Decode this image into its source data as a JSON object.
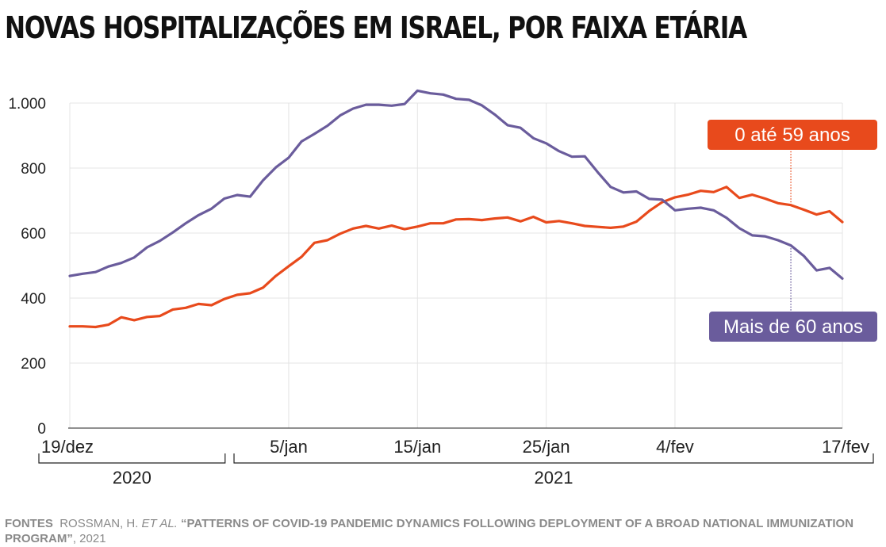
{
  "title": "NOVAS HOSPITALIZAÇÕES EM ISRAEL, POR FAIXA ETÁRIA",
  "source": {
    "label": "FONTES",
    "authors": "ROSSMAN, H.",
    "et_al": "ET AL.",
    "work": "“PATTERNS OF COVID-19 PANDEMIC DYNAMICS FOLLOWING DEPLOYMENT OF A BROAD NATIONAL IMMUNIZATION PROGRAM”",
    "year": ", 2021"
  },
  "chart_data": {
    "type": "line",
    "title": "NOVAS HOSPITALIZAÇÕES EM ISRAEL, POR FAIXA ETÁRIA",
    "xlabel": "",
    "ylabel": "",
    "ylim": [
      0,
      1000
    ],
    "yticks": [
      0,
      200,
      400,
      600,
      800,
      1000
    ],
    "ytick_labels": [
      "0",
      "200",
      "400",
      "600",
      "800",
      "1.000"
    ],
    "xlim": [
      "2020-12-19",
      "2021-02-17"
    ],
    "xticks": [
      {
        "date": "2020-12-19",
        "label": "19/dez"
      },
      {
        "date": "2021-01-05",
        "label": "5/jan"
      },
      {
        "date": "2021-01-15",
        "label": "15/jan"
      },
      {
        "date": "2021-01-25",
        "label": "25/jan"
      },
      {
        "date": "2021-02-04",
        "label": "4/fev"
      },
      {
        "date": "2021-02-17",
        "label": "17/fev"
      }
    ],
    "year_groups": [
      {
        "label": "2020",
        "from": "2020-12-19",
        "to": "2020-12-31"
      },
      {
        "label": "2021",
        "from": "2021-01-01",
        "to": "2021-02-17"
      }
    ],
    "grid": true,
    "x": [
      "2020-12-19",
      "2020-12-20",
      "2020-12-21",
      "2020-12-22",
      "2020-12-23",
      "2020-12-24",
      "2020-12-25",
      "2020-12-26",
      "2020-12-27",
      "2020-12-28",
      "2020-12-29",
      "2020-12-30",
      "2020-12-31",
      "2021-01-01",
      "2021-01-02",
      "2021-01-03",
      "2021-01-04",
      "2021-01-05",
      "2021-01-06",
      "2021-01-07",
      "2021-01-08",
      "2021-01-09",
      "2021-01-10",
      "2021-01-11",
      "2021-01-12",
      "2021-01-13",
      "2021-01-14",
      "2021-01-15",
      "2021-01-16",
      "2021-01-17",
      "2021-01-18",
      "2021-01-19",
      "2021-01-20",
      "2021-01-21",
      "2021-01-22",
      "2021-01-23",
      "2021-01-24",
      "2021-01-25",
      "2021-01-26",
      "2021-01-27",
      "2021-01-28",
      "2021-01-29",
      "2021-01-30",
      "2021-01-31",
      "2021-02-01",
      "2021-02-02",
      "2021-02-03",
      "2021-02-04",
      "2021-02-05",
      "2021-02-06",
      "2021-02-07",
      "2021-02-08",
      "2021-02-09",
      "2021-02-10",
      "2021-02-11",
      "2021-02-12",
      "2021-02-13",
      "2021-02-14",
      "2021-02-15",
      "2021-02-16",
      "2021-02-17"
    ],
    "series": [
      {
        "name": "0 até 59 anos",
        "color": "#e84a1c",
        "label_date": "2021-02-13",
        "label_position": "above",
        "values": [
          313,
          313,
          311,
          318,
          341,
          332,
          342,
          345,
          365,
          370,
          382,
          378,
          397,
          410,
          415,
          432,
          468,
          498,
          527,
          570,
          578,
          598,
          614,
          622,
          614,
          623,
          612,
          620,
          630,
          630,
          642,
          643,
          640,
          645,
          648,
          636,
          650,
          633,
          637,
          630,
          622,
          619,
          616,
          620,
          635,
          668,
          695,
          710,
          718,
          730,
          726,
          742,
          708,
          718,
          706,
          692,
          686,
          672,
          657,
          667,
          634
        ]
      },
      {
        "name": "Mais de 60 anos",
        "color": "#6a5c9c",
        "label_date": "2021-02-13",
        "label_position": "below",
        "values": [
          468,
          475,
          480,
          497,
          508,
          525,
          556,
          576,
          602,
          630,
          655,
          675,
          706,
          717,
          712,
          762,
          802,
          832,
          882,
          905,
          930,
          962,
          983,
          995,
          995,
          992,
          997,
          1038,
          1030,
          1026,
          1013,
          1010,
          993,
          965,
          932,
          924,
          892,
          876,
          852,
          835,
          836,
          787,
          742,
          725,
          728,
          705,
          703,
          670,
          675,
          678,
          670,
          647,
          615,
          593,
          590,
          578,
          562,
          530,
          485,
          493,
          460
        ]
      }
    ]
  }
}
